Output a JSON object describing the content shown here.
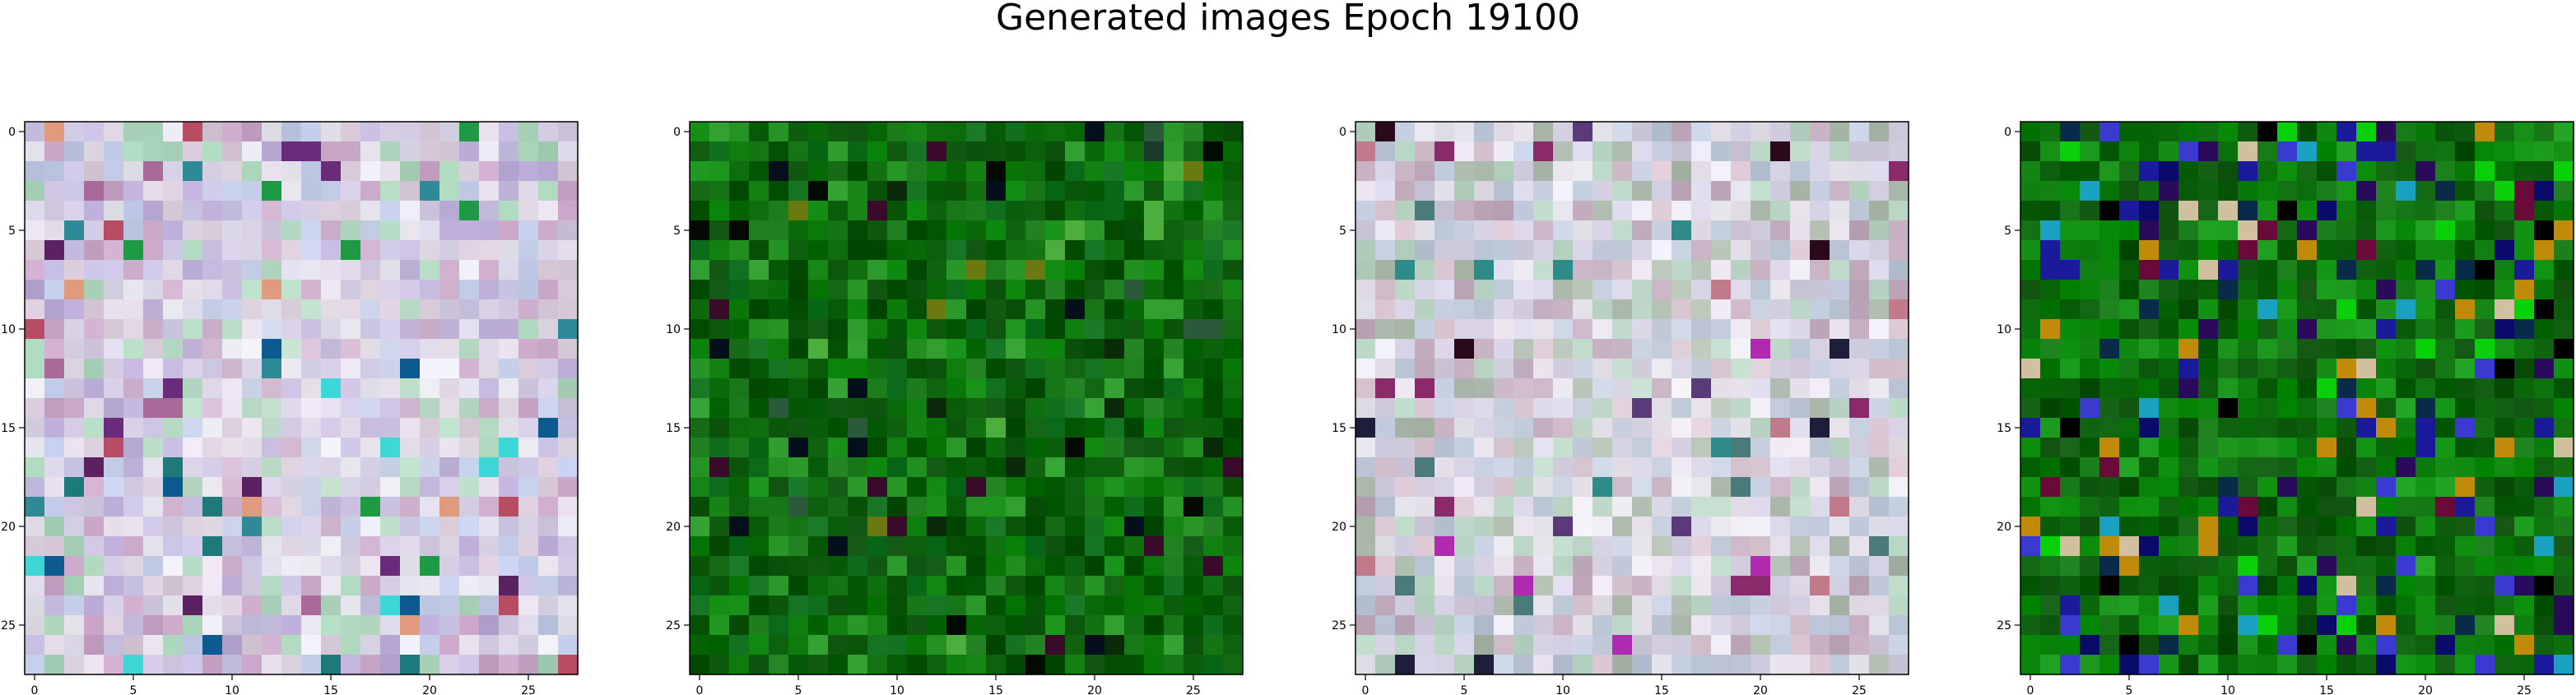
{
  "figure": {
    "title": "Generated images Epoch 19100",
    "tick_values": [
      0,
      5,
      10,
      15,
      20,
      25
    ],
    "tick_labels": [
      "0",
      "5",
      "10",
      "15",
      "20",
      "25"
    ],
    "image_size": 28
  },
  "panels": [
    {
      "name": "generated-image-1",
      "palette": [
        "#cfc6e0",
        "#d9d4e6",
        "#c6bfe1",
        "#e3dbe8",
        "#b7a8d4",
        "#d8c9d8",
        "#a9d3b9",
        "#e7e6ef",
        "#bfc9e6",
        "#c9a6c7"
      ],
      "accents": [
        "#6a2b7a",
        "#2f8a97",
        "#1e7a7a",
        "#b84c63",
        "#5b2262",
        "#1e9a45",
        "#0c5a8f",
        "#e09a7e",
        "#3dd7d7",
        "#a96a9a"
      ],
      "accent_rate": 0.08,
      "center_light": 0.35,
      "seed": 11
    },
    {
      "name": "generated-image-2",
      "palette": [
        "#0b6b0b",
        "#0e7d0e",
        "#075a07",
        "#138d13",
        "#0a4f0a",
        "#1a7a1a",
        "#0f6f1f",
        "#2b9a2b",
        "#055005",
        "#0c600c"
      ],
      "accents": [
        "#020a02",
        "#0a2a0a",
        "#1a3a2a",
        "#6a7a10",
        "#2a5a3a",
        "#030f1a",
        "#3a0a2a",
        "#4cae3c"
      ],
      "accent_rate": 0.07,
      "center_light": 0,
      "seed": 23
    },
    {
      "name": "generated-image-3",
      "palette": [
        "#cfc9dc",
        "#d7d3e6",
        "#c5cde0",
        "#e6e0ea",
        "#b8c4d4",
        "#d7c3cf",
        "#b7d4c3",
        "#e8e6ee",
        "#c0a8bb",
        "#a9b7a9"
      ],
      "accents": [
        "#2a0a1a",
        "#0a0a2a",
        "#8a2a6a",
        "#b02ab0",
        "#4a7a7a",
        "#2f8a8a",
        "#c07a8a",
        "#5b3a7a",
        "#1e1e3a"
      ],
      "accent_rate": 0.07,
      "center_light": 0.25,
      "seed": 37
    },
    {
      "name": "generated-image-4",
      "palette": [
        "#0a7a0a",
        "#0c6a0c",
        "#128c12",
        "#065806",
        "#0e5a0e",
        "#1a9a1a",
        "#0b4f0b",
        "#157a15",
        "#088a08",
        "#0c600c"
      ],
      "accents": [
        "#0a0a6a",
        "#1a1a9a",
        "#0a2a4a",
        "#2a0a5a",
        "#3a3ad0",
        "#000000",
        "#6a0a3a",
        "#c08a0a",
        "#0ad00a",
        "#1aa0c0",
        "#d0c0a0"
      ],
      "accent_rate": 0.22,
      "center_light": 0,
      "seed": 53
    }
  ]
}
